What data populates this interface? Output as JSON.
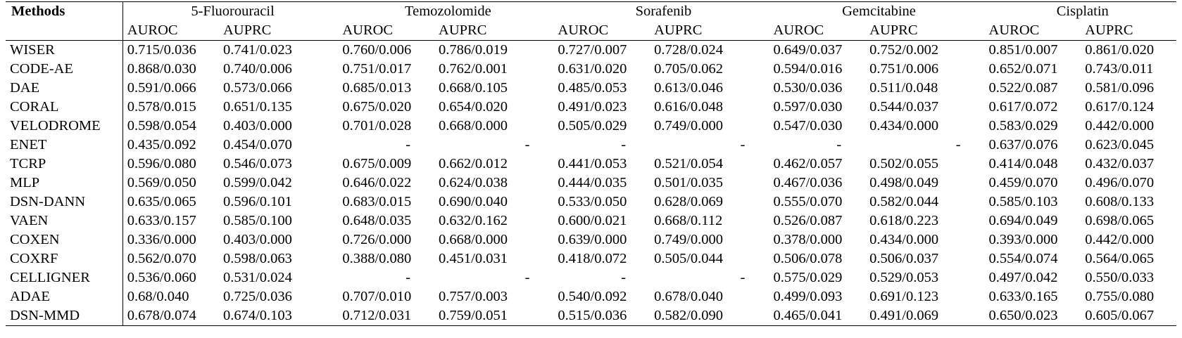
{
  "table": {
    "methods_header": "Methods",
    "drugs": [
      "5-Fluorouracil",
      "Temozolomide",
      "Sorafenib",
      "Gemcitabine",
      "Cisplatin"
    ],
    "metric_headers": [
      "AUROC",
      "AUPRC"
    ],
    "rows": [
      {
        "method": "WISER",
        "method_bold": true,
        "values": [
          "0.715/0.036",
          "0.741/0.023",
          "0.760/0.006",
          "0.786/0.019",
          "0.727/0.007",
          "0.728/0.024",
          "0.649/0.037",
          "0.752/0.002",
          "0.851/0.007",
          "0.861/0.020"
        ],
        "bold": [
          false,
          true,
          true,
          true,
          true,
          false,
          true,
          true,
          true,
          true
        ]
      },
      {
        "method": "CODE-AE",
        "method_bold": false,
        "values": [
          "0.868/0.030",
          "0.740/0.006",
          "0.751/0.017",
          "0.762/0.001",
          "0.631/0.020",
          "0.705/0.062",
          "0.594/0.016",
          "0.751/0.006",
          "0.652/0.071",
          "0.743/0.011"
        ],
        "bold": [
          true,
          false,
          false,
          false,
          false,
          false,
          false,
          false,
          false,
          false
        ]
      },
      {
        "method": "DAE",
        "method_bold": false,
        "values": [
          "0.591/0.066",
          "0.573/0.066",
          "0.685/0.013",
          "0.668/0.105",
          "0.485/0.053",
          "0.613/0.046",
          "0.530/0.036",
          "0.511/0.048",
          "0.522/0.087",
          "0.581/0.096"
        ],
        "bold": [
          false,
          false,
          false,
          false,
          false,
          false,
          false,
          false,
          false,
          false
        ]
      },
      {
        "method": "CORAL",
        "method_bold": false,
        "values": [
          "0.578/0.015",
          "0.651/0.135",
          "0.675/0.020",
          "0.654/0.020",
          "0.491/0.023",
          "0.616/0.048",
          "0.597/0.030",
          "0.544/0.037",
          "0.617/0.072",
          "0.617/0.124"
        ],
        "bold": [
          false,
          false,
          false,
          false,
          false,
          false,
          false,
          false,
          false,
          false
        ]
      },
      {
        "method": "VELODROME",
        "method_bold": false,
        "values": [
          "0.598/0.054",
          "0.403/0.000",
          "0.701/0.028",
          "0.668/0.000",
          "0.505/0.029",
          "0.749/0.000",
          "0.547/0.030",
          "0.434/0.000",
          "0.583/0.029",
          "0.442/0.000"
        ],
        "bold": [
          false,
          false,
          false,
          false,
          false,
          true,
          false,
          false,
          false,
          false
        ]
      },
      {
        "method": "ENET",
        "method_bold": false,
        "values": [
          "0.435/0.092",
          "0.454/0.070",
          "-",
          "-",
          "-",
          "-",
          "-",
          "-",
          "0.637/0.076",
          "0.623/0.045"
        ],
        "bold": [
          false,
          false,
          false,
          false,
          false,
          false,
          false,
          false,
          false,
          false
        ]
      },
      {
        "method": "TCRP",
        "method_bold": false,
        "values": [
          "0.596/0.080",
          "0.546/0.073",
          "0.675/0.009",
          "0.662/0.012",
          "0.441/0.053",
          "0.521/0.054",
          "0.462/0.057",
          "0.502/0.055",
          "0.414/0.048",
          "0.432/0.037"
        ],
        "bold": [
          false,
          false,
          false,
          false,
          false,
          false,
          false,
          false,
          false,
          false
        ]
      },
      {
        "method": "MLP",
        "method_bold": false,
        "values": [
          "0.569/0.050",
          "0.599/0.042",
          "0.646/0.022",
          "0.624/0.038",
          "0.444/0.035",
          "0.501/0.035",
          "0.467/0.036",
          "0.498/0.049",
          "0.459/0.070",
          "0.496/0.070"
        ],
        "bold": [
          false,
          false,
          false,
          false,
          false,
          false,
          false,
          false,
          false,
          false
        ]
      },
      {
        "method": "DSN-DANN",
        "method_bold": false,
        "values": [
          "0.635/0.065",
          "0.596/0.101",
          "0.683/0.015",
          "0.690/0.040",
          "0.533/0.050",
          "0.628/0.069",
          "0.555/0.070",
          "0.582/0.044",
          "0.585/0.103",
          "0.608/0.133"
        ],
        "bold": [
          false,
          false,
          false,
          false,
          false,
          false,
          false,
          false,
          false,
          false
        ]
      },
      {
        "method": "VAEN",
        "method_bold": false,
        "values": [
          "0.633/0.157",
          "0.585/0.100",
          "0.648/0.035",
          "0.632/0.162",
          "0.600/0.021",
          "0.668/0.112",
          "0.526/0.087",
          "0.618/0.223",
          "0.694/0.049",
          "0.698/0.065"
        ],
        "bold": [
          false,
          false,
          false,
          false,
          false,
          false,
          false,
          false,
          false,
          false
        ]
      },
      {
        "method": "COXEN",
        "method_bold": false,
        "values": [
          "0.336/0.000",
          "0.403/0.000",
          "0.726/0.000",
          "0.668/0.000",
          "0.639/0.000",
          "0.749/0.000",
          "0.378/0.000",
          "0.434/0.000",
          "0.393/0.000",
          "0.442/0.000"
        ],
        "bold": [
          false,
          false,
          false,
          false,
          false,
          true,
          false,
          false,
          false,
          false
        ]
      },
      {
        "method": "COXRF",
        "method_bold": false,
        "values": [
          "0.562/0.070",
          "0.598/0.063",
          "0.388/0.080",
          "0.451/0.031",
          "0.418/0.072",
          "0.505/0.044",
          "0.506/0.078",
          "0.506/0.037",
          "0.554/0.074",
          "0.564/0.065"
        ],
        "bold": [
          false,
          false,
          false,
          false,
          false,
          false,
          false,
          false,
          false,
          false
        ]
      },
      {
        "method": "CELLIGNER",
        "method_bold": false,
        "values": [
          "0.536/0.060",
          "0.531/0.024",
          "-",
          "-",
          "-",
          "-",
          "0.575/0.029",
          "0.529/0.053",
          "0.497/0.042",
          "0.550/0.033"
        ],
        "bold": [
          false,
          false,
          false,
          false,
          false,
          false,
          false,
          false,
          false,
          false
        ]
      },
      {
        "method": "ADAE",
        "method_bold": false,
        "values": [
          "0.68/0.040",
          "0.725/0.036",
          "0.707/0.010",
          "0.757/0.003",
          "0.540/0.092",
          "0.678/0.040",
          "0.499/0.093",
          "0.691/0.123",
          "0.633/0.165",
          "0.755/0.080"
        ],
        "bold": [
          false,
          false,
          false,
          false,
          false,
          false,
          false,
          false,
          false,
          false
        ]
      },
      {
        "method": "DSN-MMD",
        "method_bold": false,
        "values": [
          "0.678/0.074",
          "0.674/0.103",
          "0.712/0.031",
          "0.759/0.051",
          "0.515/0.036",
          "0.582/0.090",
          "0.465/0.041",
          "0.491/0.069",
          "0.650/0.023",
          "0.605/0.067"
        ],
        "bold": [
          false,
          false,
          false,
          false,
          false,
          false,
          false,
          false,
          false,
          false
        ]
      }
    ]
  }
}
